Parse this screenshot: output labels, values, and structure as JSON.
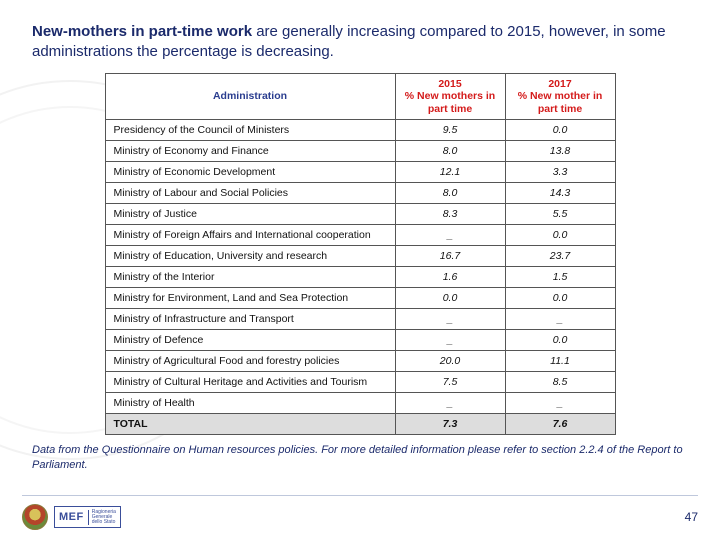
{
  "headline": {
    "bold": "New-mothers in part-time work",
    "rest": " are generally increasing compared to 2015, however, in some administrations the percentage is decreasing."
  },
  "table": {
    "header": {
      "admin": "Administration",
      "col2015": "2015\n% New mothers in\npart time",
      "col2017": "2017\n% New mother in\npart time"
    },
    "rows": [
      {
        "name": "Presidency of the Council of Ministers",
        "v2015": "9.5",
        "v2017": "0.0"
      },
      {
        "name": "Ministry of Economy and Finance",
        "v2015": "8.0",
        "v2017": "13.8"
      },
      {
        "name": "Ministry of Economic Development",
        "v2015": "12.1",
        "v2017": "3.3"
      },
      {
        "name": "Ministry of Labour and Social Policies",
        "v2015": "8.0",
        "v2017": "14.3"
      },
      {
        "name": "Ministry of Justice",
        "v2015": "8.3",
        "v2017": "5.5"
      },
      {
        "name": "Ministry of Foreign Affairs and International cooperation",
        "v2015": "_",
        "v2017": "0.0"
      },
      {
        "name": "Ministry of Education, University and research",
        "v2015": "16.7",
        "v2017": "23.7"
      },
      {
        "name": "Ministry of the Interior",
        "v2015": "1.6",
        "v2017": "1.5"
      },
      {
        "name": "Ministry for Environment, Land and Sea Protection",
        "v2015": "0.0",
        "v2017": "0.0"
      },
      {
        "name": "Ministry of Infrastructure and Transport",
        "v2015": "_",
        "v2017": "_"
      },
      {
        "name": "Ministry of Defence",
        "v2015": "_",
        "v2017": "0.0"
      },
      {
        "name": "Ministry of Agricultural Food and forestry policies",
        "v2015": "20.0",
        "v2017": "11.1"
      },
      {
        "name": "Ministry of Cultural Heritage and Activities and Tourism",
        "v2015": "7.5",
        "v2017": "8.5"
      },
      {
        "name": "Ministry of Health",
        "v2015": "_",
        "v2017": "_"
      }
    ],
    "total": {
      "name": "TOTAL",
      "v2015": "7.3",
      "v2017": "7.6"
    }
  },
  "source": "Data from the Questionnaire on Human resources policies. For more detailed information please refer to section 2.2.4 of the Report to Parliament.",
  "logos": {
    "mef": "MEF",
    "mef_sub": "Ragioneria\nGenerale\ndello Stato"
  },
  "page_number": "47",
  "style": {
    "header_year_color": "#d41b1b",
    "header_admin_color": "#2a3d8f",
    "total_bg": "#dddddd",
    "border_color": "#555555",
    "text_color": "#1b2a6b"
  }
}
